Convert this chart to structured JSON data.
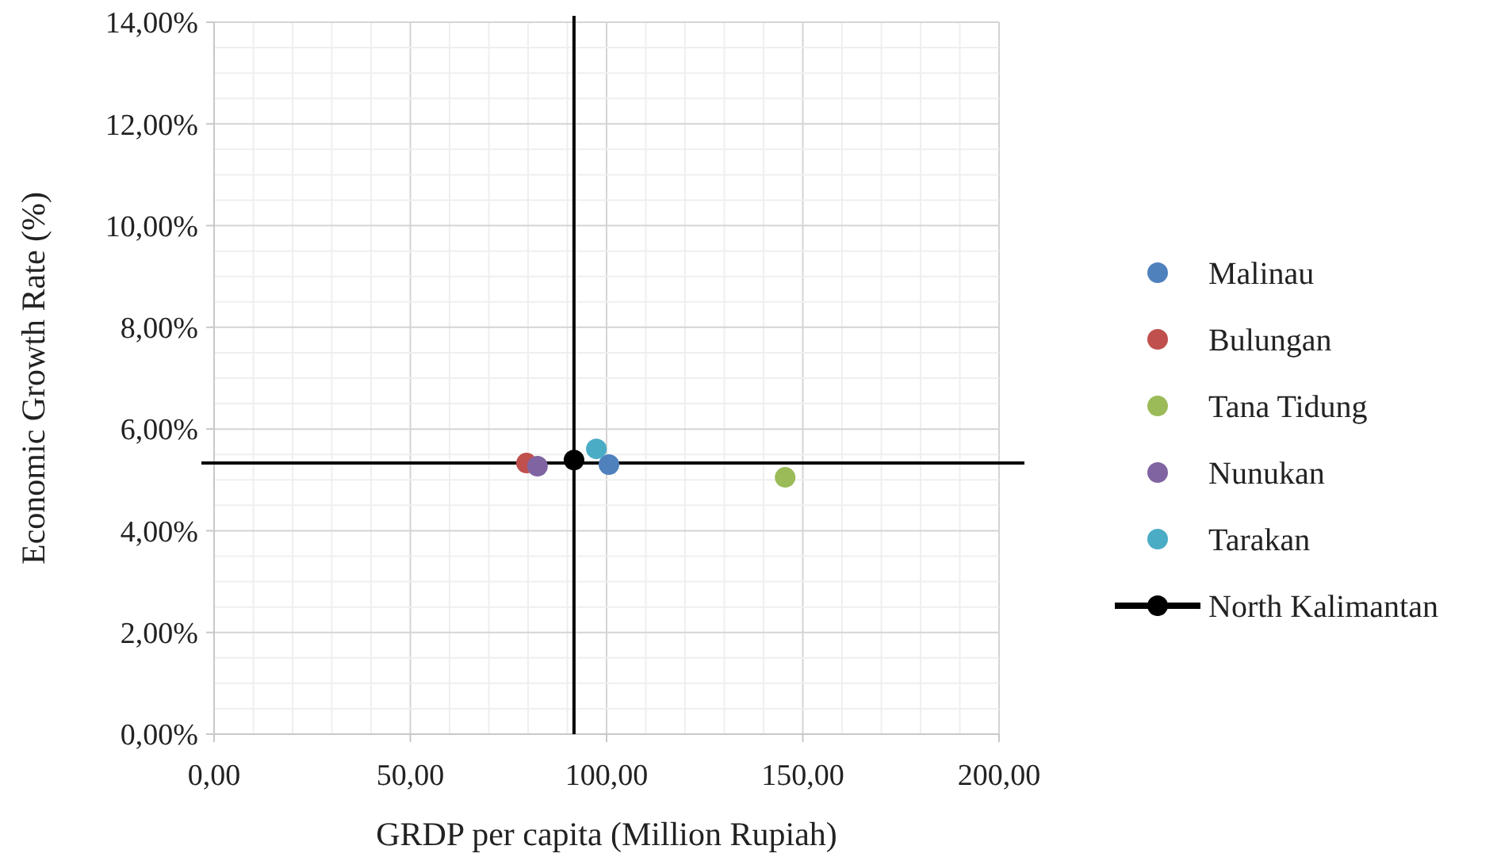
{
  "chart_data": {
    "type": "scatter",
    "xlabel": "GRDP per capita (Million Rupiah)",
    "ylabel": "Economic Growth Rate (%)",
    "xlim": [
      0,
      200
    ],
    "xticks": [
      {
        "value": 0,
        "label": "0,00"
      },
      {
        "value": 50,
        "label": "50,00"
      },
      {
        "value": 100,
        "label": "100,00"
      },
      {
        "value": 150,
        "label": "150,00"
      },
      {
        "value": 200,
        "label": "200,00"
      }
    ],
    "ylim": [
      0,
      14
    ],
    "yticks": [
      {
        "value": 0,
        "label": "0,00%"
      },
      {
        "value": 2,
        "label": "2,00%"
      },
      {
        "value": 4,
        "label": "4,00%"
      },
      {
        "value": 6,
        "label": "6,00%"
      },
      {
        "value": 8,
        "label": "8,00%"
      },
      {
        "value": 10,
        "label": "10,00%"
      },
      {
        "value": 12,
        "label": "12,00%"
      },
      {
        "value": 14,
        "label": "14,00%"
      }
    ],
    "grid": true,
    "legend": "right",
    "marker": "circle",
    "series": [
      {
        "name": "Malinau",
        "color": "#4f81bd",
        "x": [
          100.6
        ],
        "values": [
          5.3
        ]
      },
      {
        "name": "Bulungan",
        "color": "#c0504d",
        "x": [
          79.6
        ],
        "values": [
          5.33
        ]
      },
      {
        "name": "Tana Tidung",
        "color": "#9bbb59",
        "x": [
          145.5
        ],
        "values": [
          5.05
        ]
      },
      {
        "name": "Nunukan",
        "color": "#8064a2",
        "x": [
          82.4
        ],
        "values": [
          5.27
        ]
      },
      {
        "name": "Tarakan",
        "color": "#4bacc6",
        "x": [
          97.4
        ],
        "values": [
          5.61
        ]
      },
      {
        "name": "North Kalimantan",
        "type": "line",
        "color": "#000000",
        "x": [
          91.7
        ],
        "values": [
          5.39
        ]
      }
    ],
    "ref_lines": [
      {
        "axis": "x",
        "value": 91.7,
        "color": "#000000"
      },
      {
        "axis": "y",
        "value": 5.33,
        "color": "#000000"
      }
    ]
  }
}
